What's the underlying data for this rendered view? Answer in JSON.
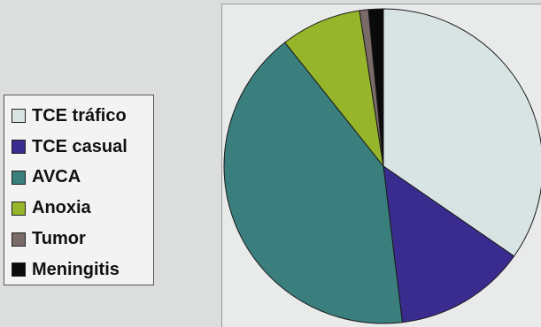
{
  "chart_data": {
    "type": "pie",
    "title": "",
    "categories": [
      "TCE tráfico",
      "TCE casual",
      "AVCA",
      "Anoxia",
      "Tumor",
      "Meningitis"
    ],
    "values": [
      34.7,
      13.4,
      41.3,
      8.2,
      0.9,
      1.5
    ],
    "unit": "%",
    "colors": [
      "#d8e4e4",
      "#3a2c8e",
      "#3a7e7e",
      "#97b52a",
      "#7a6a68",
      "#0a0a0a"
    ],
    "start_angle_deg": 0,
    "direction": "clockwise",
    "legend_position": "left"
  }
}
